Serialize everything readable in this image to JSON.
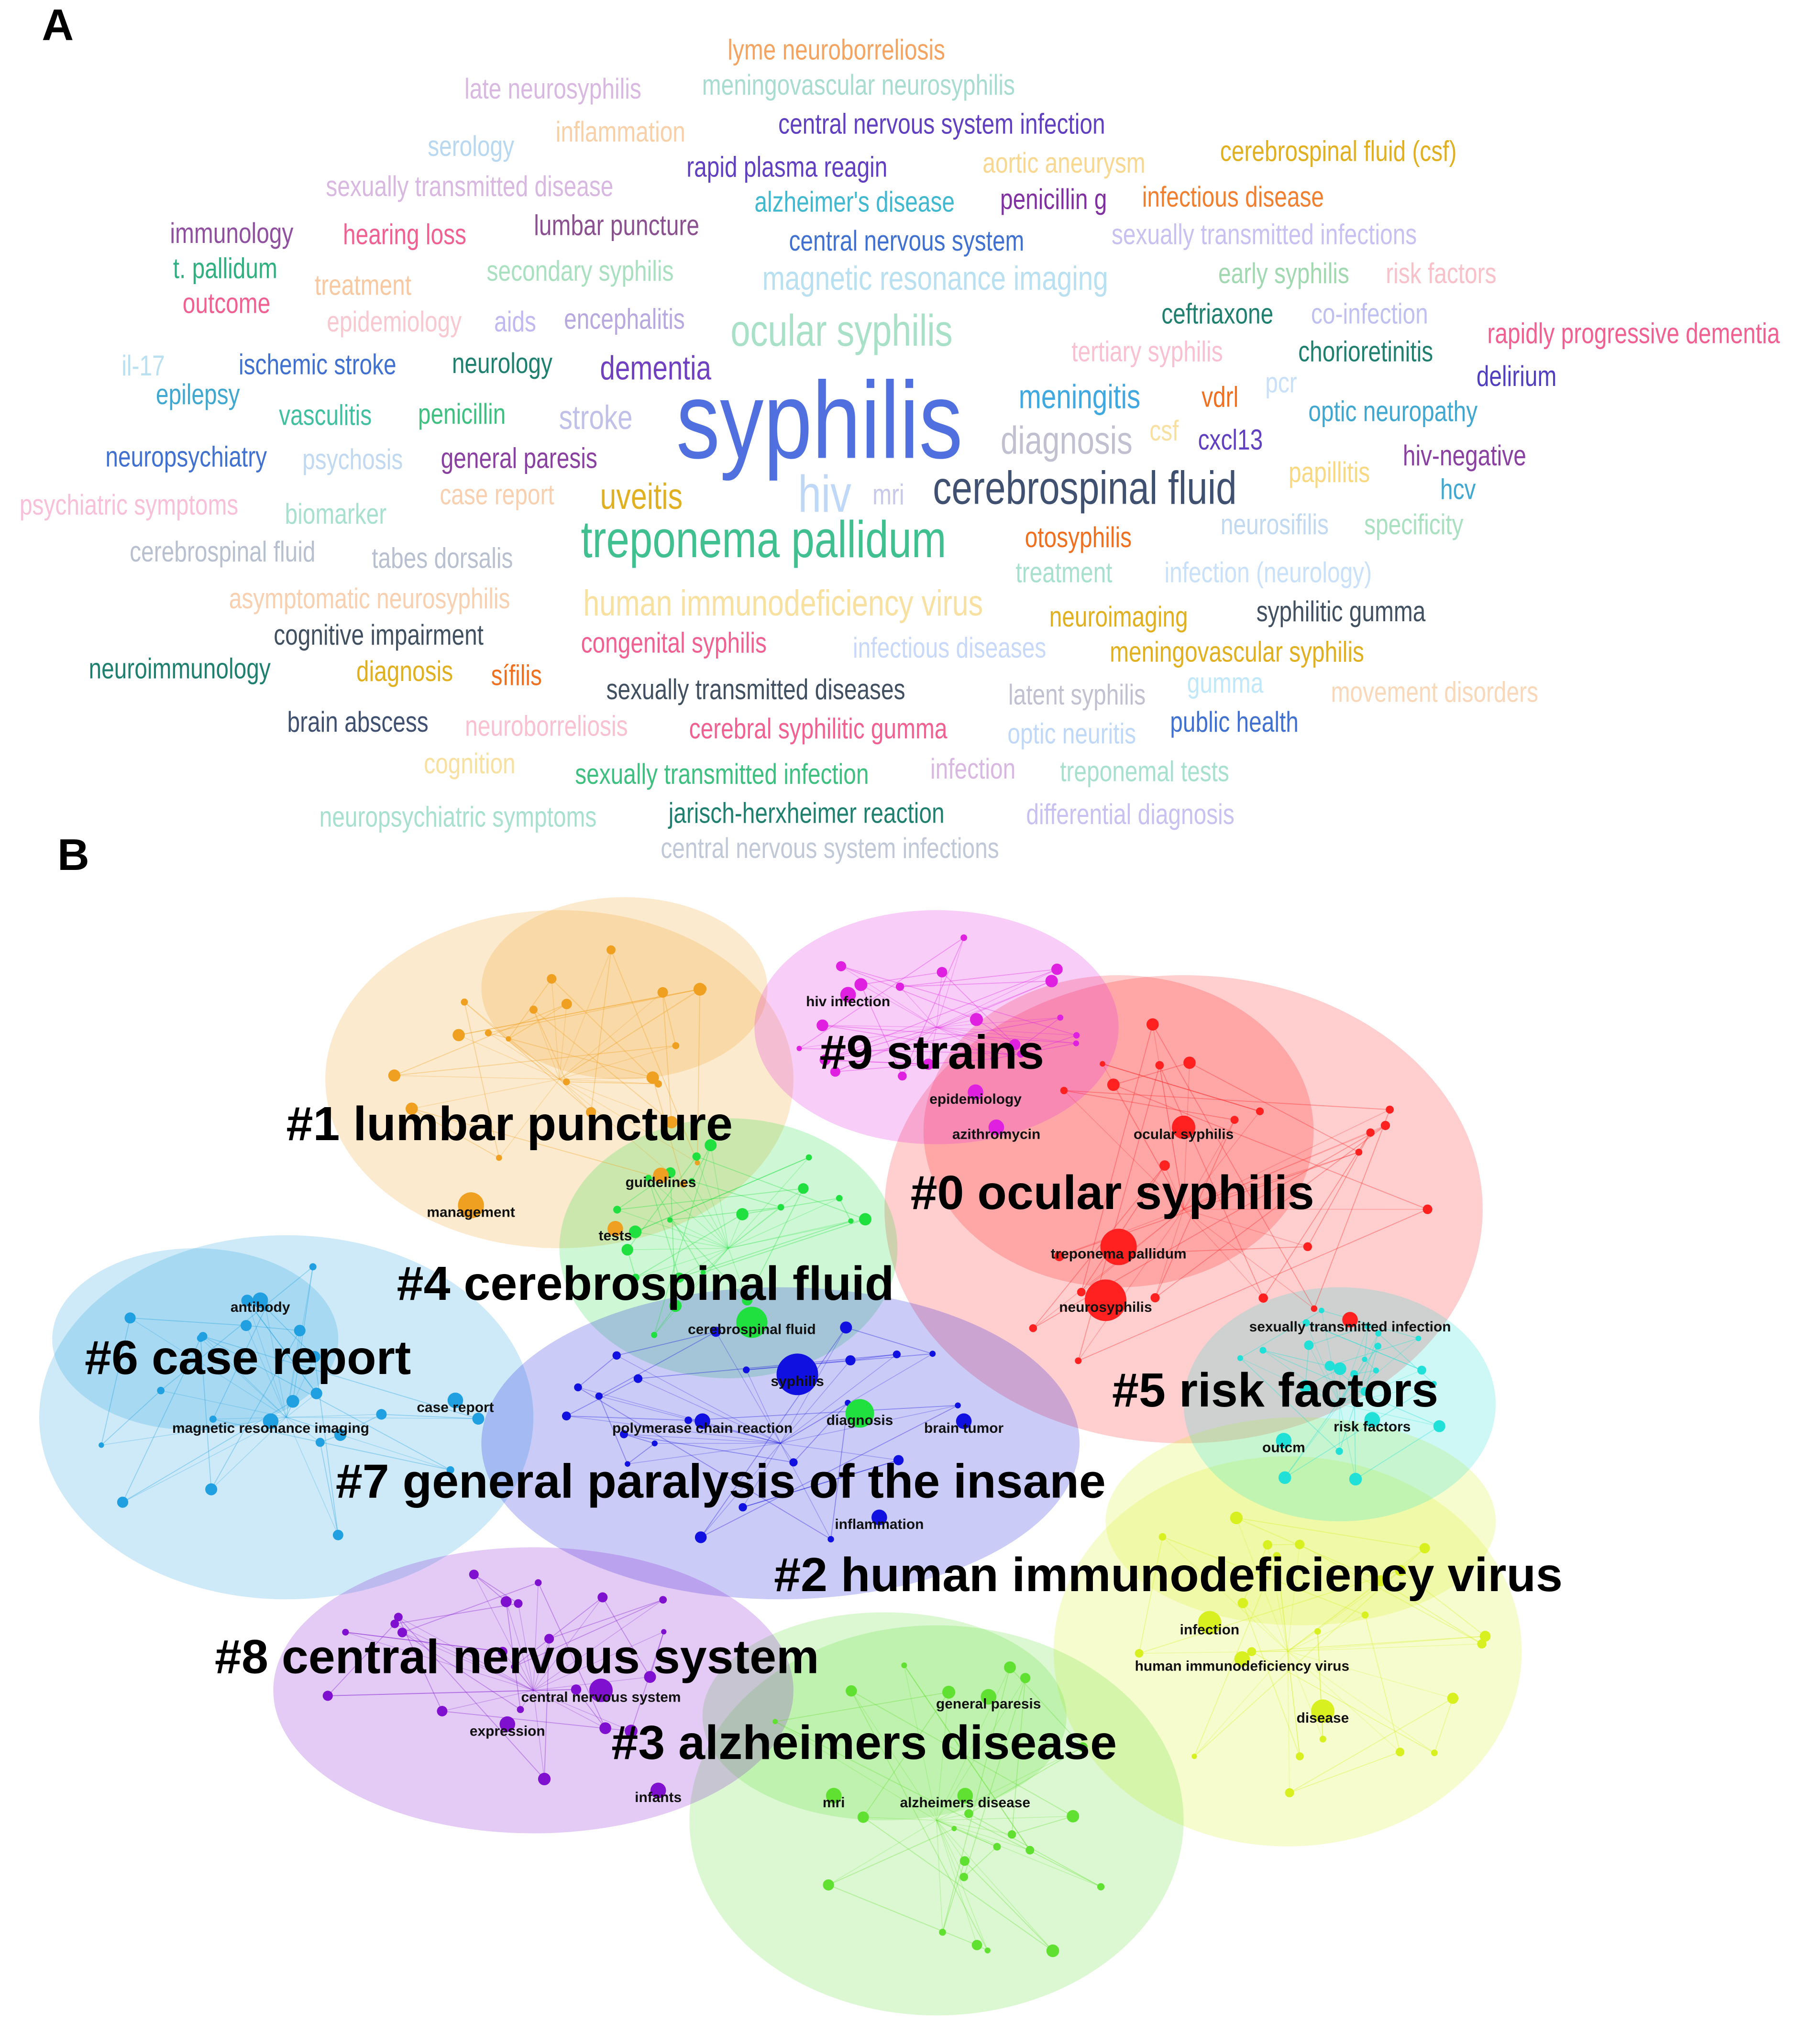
{
  "panel_a": {
    "label": "A",
    "words": [
      {
        "text": "lyme neuroborreliosis",
        "color": "#f4a460"
      },
      {
        "text": "late neurosyphilis",
        "color": "#d8b8e0"
      },
      {
        "text": "meningovascular neurosyphilis",
        "color": "#a8dcd0"
      },
      {
        "text": "inflammation",
        "color": "#f8d0a8"
      },
      {
        "text": "serology",
        "color": "#b8d8f0"
      },
      {
        "text": "central nervous system infection",
        "color": "#6040c0"
      },
      {
        "text": "aortic aneurysm",
        "color": "#f8d890"
      },
      {
        "text": "cerebrospinal fluid (csf)",
        "color": "#e0b020"
      },
      {
        "text": "rapid plasma reagin",
        "color": "#6040c0"
      },
      {
        "text": "sexually transmitted disease",
        "color": "#d8b8e0"
      },
      {
        "text": "alzheimer's disease",
        "color": "#40b8d0"
      },
      {
        "text": "penicillin g",
        "color": "#8030a0"
      },
      {
        "text": "infectious disease",
        "color": "#f08030"
      },
      {
        "text": "lumbar puncture",
        "color": "#8a5090"
      },
      {
        "text": "immunology",
        "color": "#9050a0"
      },
      {
        "text": "hearing loss",
        "color": "#f06090"
      },
      {
        "text": "central nervous system",
        "color": "#4070d0"
      },
      {
        "text": "sexually transmitted infections",
        "color": "#c8c0f0"
      },
      {
        "text": "t. pallidum",
        "color": "#30b080"
      },
      {
        "text": "treatment",
        "color": "#f8c8a0"
      },
      {
        "text": "secondary syphilis",
        "color": "#a8e0c0"
      },
      {
        "text": "magnetic resonance imaging",
        "color": "#b8e0f0"
      },
      {
        "text": "early syphilis",
        "color": "#a0d8b0"
      },
      {
        "text": "risk factors",
        "color": "#f8c0c8"
      },
      {
        "text": "outcome",
        "color": "#f06090"
      },
      {
        "text": "epidemiology",
        "color": "#f8c8d0"
      },
      {
        "text": "aids",
        "color": "#c0b8f0"
      },
      {
        "text": "encephalitis",
        "color": "#b8a8e0"
      },
      {
        "text": "ocular syphilis",
        "color": "#a8e0c8"
      },
      {
        "text": "ceftriaxone",
        "color": "#208070"
      },
      {
        "text": "co-infection",
        "color": "#c0c0f0"
      },
      {
        "text": "rapidly progressive dementia",
        "color": "#f06090"
      },
      {
        "text": "il-17",
        "color": "#b8e0f0"
      },
      {
        "text": "ischemic stroke",
        "color": "#4070d0"
      },
      {
        "text": "neurology",
        "color": "#208070"
      },
      {
        "text": "dementia",
        "color": "#7040c0"
      },
      {
        "text": "tertiary syphilis",
        "color": "#f8c0d0"
      },
      {
        "text": "chorioretinitis",
        "color": "#208070"
      },
      {
        "text": "syphilis",
        "color": "#5070e0"
      },
      {
        "text": "pcr",
        "color": "#c8e0f8"
      },
      {
        "text": "delirium",
        "color": "#5040c0"
      },
      {
        "text": "epilepsy",
        "color": "#40a8d0"
      },
      {
        "text": "vasculitis",
        "color": "#40c0a0"
      },
      {
        "text": "penicillin",
        "color": "#40c080"
      },
      {
        "text": "stroke",
        "color": "#c0c0e8"
      },
      {
        "text": "meningitis",
        "color": "#40a8e0"
      },
      {
        "text": "vdrl",
        "color": "#f07020"
      },
      {
        "text": "csf",
        "color": "#f8e0a0"
      },
      {
        "text": "cxcl13",
        "color": "#6040c0"
      },
      {
        "text": "optic neuropathy",
        "color": "#40a8d0"
      },
      {
        "text": "diagnosis",
        "color": "#c0c0d0"
      },
      {
        "text": "neuropsychiatry",
        "color": "#4070d0"
      },
      {
        "text": "psychosis",
        "color": "#c0d8f0"
      },
      {
        "text": "general paresis",
        "color": "#8a40a0"
      },
      {
        "text": "hiv",
        "color": "#c0d8f8"
      },
      {
        "text": "mri",
        "color": "#c8c8e8"
      },
      {
        "text": "cerebrospinal fluid",
        "color": "#405070"
      },
      {
        "text": "hiv-negative",
        "color": "#8a40a0"
      },
      {
        "text": "papillitis",
        "color": "#f8d880"
      },
      {
        "text": "psychiatric symptoms",
        "color": "#f8c0d8"
      },
      {
        "text": "case report",
        "color": "#f8d0b0"
      },
      {
        "text": "uveitis",
        "color": "#e0b020"
      },
      {
        "text": "hcv",
        "color": "#40a8d0"
      },
      {
        "text": "biomarker",
        "color": "#a8e0d0"
      },
      {
        "text": "neurosifilis",
        "color": "#c0d8f0"
      },
      {
        "text": "specificity",
        "color": "#a8e0c0"
      },
      {
        "text": "otosyphilis",
        "color": "#f07020"
      },
      {
        "text": "treponema pallidum",
        "color": "#40c090"
      },
      {
        "text": "cerebrospinal fluid",
        "color": "#b8c0d0"
      },
      {
        "text": "tabes dorsalis",
        "color": "#b8c0d0"
      },
      {
        "text": "treatment",
        "color": "#a8e0d0"
      },
      {
        "text": "infection (neurology)",
        "color": "#c8e0f8"
      },
      {
        "text": "asymptomatic neurosyphilis",
        "color": "#f8d0b0"
      },
      {
        "text": "human immunodeficiency virus",
        "color": "#f8e0a0"
      },
      {
        "text": "neuroimaging",
        "color": "#e0b020"
      },
      {
        "text": "syphilitic gumma",
        "color": "#405060"
      },
      {
        "text": "cognitive impairment",
        "color": "#405060"
      },
      {
        "text": "congenital syphilis",
        "color": "#f06090"
      },
      {
        "text": "infectious diseases",
        "color": "#c8d8f8"
      },
      {
        "text": "meningovascular syphilis",
        "color": "#e0b020"
      },
      {
        "text": "neuroimmunology",
        "color": "#208070"
      },
      {
        "text": "diagnosis",
        "color": "#e0b020"
      },
      {
        "text": "sífilis",
        "color": "#f07020"
      },
      {
        "text": "sexually transmitted diseases",
        "color": "#405060"
      },
      {
        "text": "latent syphilis",
        "color": "#c0c0d0"
      },
      {
        "text": "gumma",
        "color": "#c0e8f8"
      },
      {
        "text": "movement disorders",
        "color": "#f8d8b8"
      },
      {
        "text": "brain abscess",
        "color": "#405070"
      },
      {
        "text": "neuroborreliosis",
        "color": "#f8c0d0"
      },
      {
        "text": "cerebral syphilitic gumma",
        "color": "#f06090"
      },
      {
        "text": "optic neuritis",
        "color": "#c0d8f8"
      },
      {
        "text": "public health",
        "color": "#4070d0"
      },
      {
        "text": "cognition",
        "color": "#f8e0a0"
      },
      {
        "text": "sexually transmitted infection",
        "color": "#40c080"
      },
      {
        "text": "infection",
        "color": "#d8b8e0"
      },
      {
        "text": "treponemal tests",
        "color": "#a8e0d0"
      },
      {
        "text": "neuropsychiatric symptoms",
        "color": "#a8e0d0"
      },
      {
        "text": "jarisch-herxheimer reaction",
        "color": "#208070"
      },
      {
        "text": "differential diagnosis",
        "color": "#c8c0f0"
      },
      {
        "text": "central nervous system infections",
        "color": "#c0c8d8"
      }
    ]
  },
  "panel_b": {
    "label": "B",
    "clusters": [
      {
        "label": "#0 ocular syphilis",
        "color": "#ff2020"
      },
      {
        "label": "#1 lumbar puncture",
        "color": "#f0a020"
      },
      {
        "label": "#2 human immunodeficiency virus",
        "color": "#d8f020"
      },
      {
        "label": "#3 alzheimers disease",
        "color": "#60e030"
      },
      {
        "label": "#4 cerebrospinal fluid",
        "color": "#20e040"
      },
      {
        "label": "#5 risk factors",
        "color": "#20e0d8"
      },
      {
        "label": "#6 case report",
        "color": "#20a0e0"
      },
      {
        "label": "#7 general paralysis of the insane",
        "color": "#1010e0"
      },
      {
        "label": "#8 central nervous system",
        "color": "#8010d0"
      },
      {
        "label": "#9 strains",
        "color": "#e020e0"
      }
    ],
    "node_labels": [
      "hiv infection",
      "epidemiology",
      "azithromycin",
      "ocular syphilis",
      "guidelines",
      "management",
      "tests",
      "treponema pallidum",
      "antibody",
      "neurosyphilis",
      "cerebrospinal fluid",
      "sexually transmitted infection",
      "syphilis",
      "case report",
      "polymerase chain reaction",
      "diagnosis",
      "brain tumor",
      "magnetic resonance imaging",
      "risk factors",
      "outcm",
      "inflammation",
      "infection",
      "human immunodeficiency virus",
      "central nervous system",
      "general paresis",
      "disease",
      "expression",
      "infants",
      "mri",
      "alzheimers disease"
    ]
  }
}
